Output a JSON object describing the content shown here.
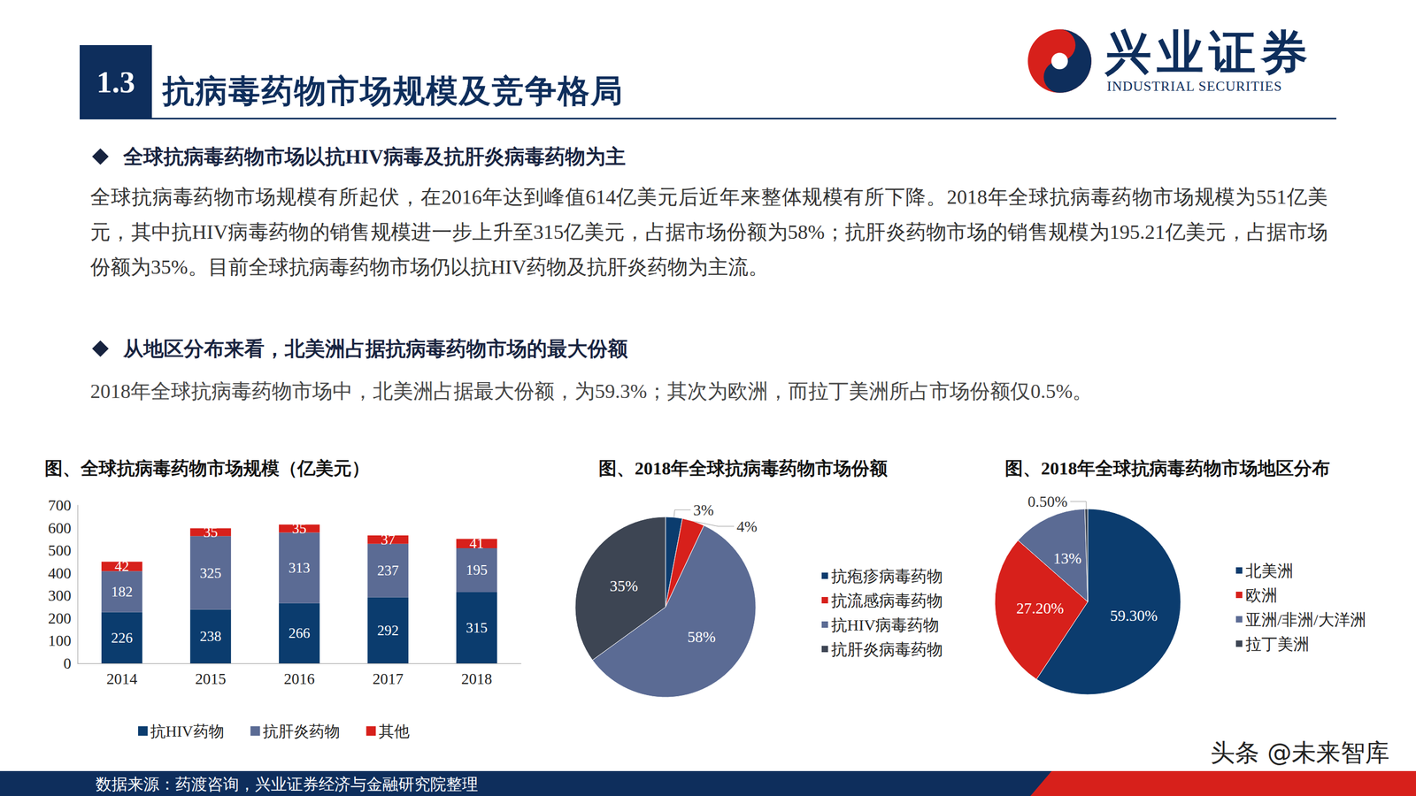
{
  "header": {
    "number": "1.3",
    "title": "抗病毒药物市场规模及竞争格局"
  },
  "logo": {
    "name": "兴业证券",
    "name_en": "INDUSTRIAL SECURITIES"
  },
  "sections": [
    {
      "heading": "全球抗病毒药物市场以抗HIV病毒及抗肝炎病毒药物为主",
      "text": "全球抗病毒药物市场规模有所起伏，在2016年达到峰值614亿美元后近年来整体规模有所下降。2018年全球抗病毒药物市场规模为551亿美元，其中抗HIV病毒药物的销售规模进一步上升至315亿美元，占据市场份额为58%；抗肝炎药物市场的销售规模为195.21亿美元，占据市场份额为35%。目前全球抗病毒药物市场仍以抗HIV药物及抗肝炎药物为主流。"
    },
    {
      "heading": "从地区分布来看，北美洲占据抗病毒药物市场的最大份额",
      "text": "2018年全球抗病毒药物市场中，北美洲占据最大份额，为59.3%；其次为欧洲，而拉丁美洲所占市场份额仅0.5%。"
    }
  ],
  "source": "数据来源：药渡咨询，兴业证券经济与金融研究院整理",
  "watermark": "头条 @未来智库",
  "chart_data": [
    {
      "type": "bar",
      "title": "图、全球抗病毒药物市场规模（亿美元）",
      "categories": [
        "2014",
        "2015",
        "2016",
        "2017",
        "2018"
      ],
      "series": [
        {
          "name": "抗HIV药物",
          "color": "#0b3c6e",
          "values": [
            226,
            238,
            266,
            292,
            315
          ]
        },
        {
          "name": "抗肝炎药物",
          "color": "#5b6b94",
          "values": [
            182,
            325,
            313,
            237,
            195
          ]
        },
        {
          "name": "其他",
          "color": "#d7201b",
          "values": [
            42,
            35,
            35,
            37,
            41
          ]
        }
      ],
      "ylim": [
        0,
        700
      ],
      "yticks": [
        0,
        100,
        200,
        300,
        400,
        500,
        600,
        700
      ],
      "stacked": true,
      "data_labels": true,
      "grid": false,
      "legend": "bottom"
    },
    {
      "type": "pie",
      "title": "图、2018年全球抗病毒药物市场份额",
      "categories": [
        "抗疱疹病毒药物",
        "抗流感病毒药物",
        "抗HIV病毒药物",
        "抗肝炎病毒药物"
      ],
      "values": [
        3,
        4,
        58,
        35
      ],
      "value_labels": [
        "3%",
        "4%",
        "58%",
        "35%"
      ],
      "colors": [
        "#0b3c6e",
        "#d7201b",
        "#5b6b94",
        "#3d4553"
      ],
      "data_labels": true,
      "legend": "right"
    },
    {
      "type": "pie",
      "title": "图、2018年全球抗病毒药物市场地区分布",
      "categories": [
        "北美洲",
        "欧洲",
        "亚洲/非洲/大洋洲",
        "拉丁美洲"
      ],
      "values": [
        59.3,
        27.2,
        13,
        0.5
      ],
      "value_labels": [
        "59.30%",
        "27.20%",
        "13%",
        "0.50%"
      ],
      "colors": [
        "#0b3c6e",
        "#d7201b",
        "#5b6b94",
        "#3d4553"
      ],
      "data_labels": true,
      "legend": "right"
    }
  ]
}
